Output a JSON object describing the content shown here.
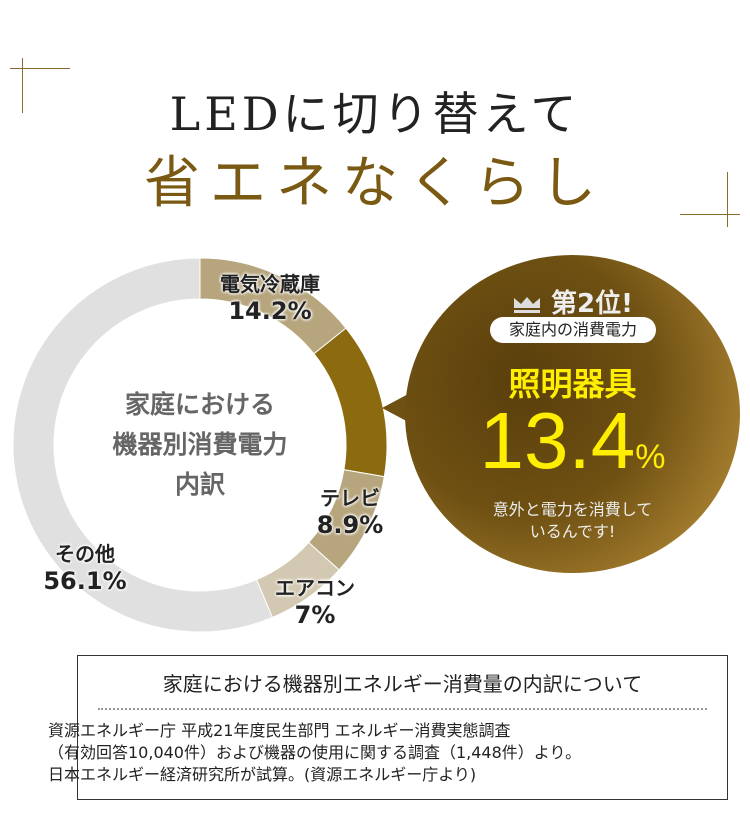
{
  "header": {
    "title_line1": "LEDに切り替えて",
    "title_line2": "省エネなくらし"
  },
  "chart_data": {
    "type": "pie",
    "variant": "donut",
    "title": "家庭における機器別消費電力内訳",
    "categories": [
      "電気冷蔵庫",
      "照明器具",
      "テレビ",
      "エアコン",
      "その他"
    ],
    "values": [
      14.2,
      13.4,
      8.9,
      7,
      56.1
    ],
    "value_labels": [
      "14.2%",
      "13.4%",
      "8.9%",
      "7%",
      "56.1%"
    ],
    "colors": [
      "#b7a57e",
      "#8c6b10",
      "#b7a57e",
      "#d3c9b2",
      "#e0e0e0"
    ],
    "start": "12 o'clock, clockwise"
  },
  "center": {
    "line1": "家庭における",
    "line2": "機器別消費電力",
    "line3": "内訳"
  },
  "highlight": {
    "rank": "第2位!",
    "pill": "家庭内の消費電力",
    "item": "照明器具",
    "value": "13.4",
    "unit": "%",
    "note1": "意外と電力を消費して",
    "note2": "いるんです!",
    "icon": "crown-icon"
  },
  "source": {
    "title": "家庭における機器別エネルギー消費量の内訳について",
    "lines": [
      "資源エネルギー庁 平成21年度民生部門 エネルギー消費実態調査",
      "（有効回答10,040件）および機器の使用に関する調査（1,448件）より。",
      "日本エネルギー経済研究所が試算。(資源エネルギー庁より)"
    ]
  }
}
